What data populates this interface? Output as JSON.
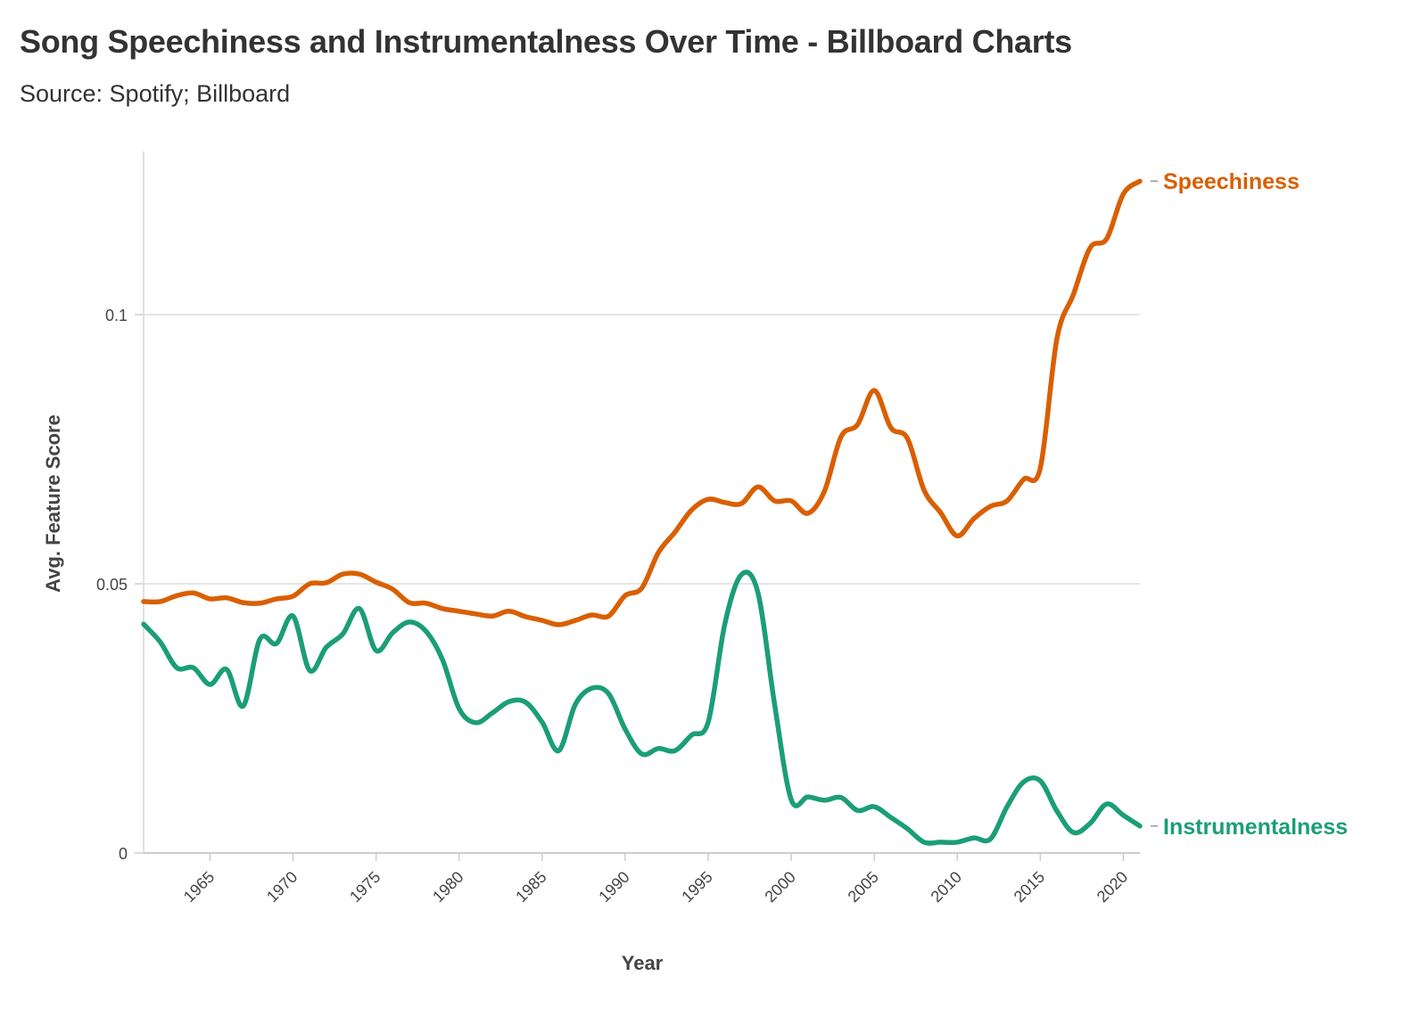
{
  "title": "Song Speechiness and Instrumentalness Over Time - Billboard Charts",
  "subtitle": "Source: Spotify; Billboard",
  "chart_data": {
    "type": "line",
    "title": "Song Speechiness and Instrumentalness Over Time - Billboard Charts",
    "subtitle": "Source: Spotify; Billboard",
    "xlabel": "Year",
    "ylabel": "Avg. Feature Score",
    "xlim": [
      1961,
      2021
    ],
    "ylim": [
      0,
      0.13
    ],
    "x_ticks": [
      1965,
      1970,
      1975,
      1980,
      1985,
      1990,
      1995,
      2000,
      2005,
      2010,
      2015,
      2020
    ],
    "y_ticks": [
      0,
      0.05,
      0.1
    ],
    "y_tick_labels": [
      "0",
      "0.05",
      "0.1"
    ],
    "grid": "horizontal",
    "legend": "direct labels at line ends",
    "x": [
      1961,
      1962,
      1963,
      1964,
      1965,
      1966,
      1967,
      1968,
      1969,
      1970,
      1971,
      1972,
      1973,
      1974,
      1975,
      1976,
      1977,
      1978,
      1979,
      1980,
      1981,
      1982,
      1983,
      1984,
      1985,
      1986,
      1987,
      1988,
      1989,
      1990,
      1991,
      1992,
      1993,
      1994,
      1995,
      1996,
      1997,
      1998,
      1999,
      2000,
      2001,
      2002,
      2003,
      2004,
      2005,
      2006,
      2007,
      2008,
      2009,
      2010,
      2011,
      2012,
      2013,
      2014,
      2015,
      2016,
      2017,
      2018,
      2019,
      2020,
      2021
    ],
    "series": [
      {
        "name": "Speechiness",
        "color": "#d95f02",
        "values": [
          0.0467,
          0.0467,
          0.0478,
          0.0483,
          0.0472,
          0.0474,
          0.0465,
          0.0464,
          0.0472,
          0.0477,
          0.05,
          0.0502,
          0.0518,
          0.0518,
          0.0503,
          0.049,
          0.0465,
          0.0464,
          0.0454,
          0.0449,
          0.0444,
          0.044,
          0.0449,
          0.0439,
          0.0432,
          0.0424,
          0.0432,
          0.0442,
          0.044,
          0.0478,
          0.0492,
          0.0558,
          0.0596,
          0.0637,
          0.0657,
          0.0651,
          0.0649,
          0.068,
          0.0654,
          0.0654,
          0.0631,
          0.0672,
          0.0773,
          0.0796,
          0.0859,
          0.079,
          0.077,
          0.0674,
          0.0632,
          0.0589,
          0.0621,
          0.0644,
          0.0654,
          0.0694,
          0.0715,
          0.0955,
          0.1038,
          0.1124,
          0.1141,
          0.1224,
          0.1248
        ]
      },
      {
        "name": "Instrumentalness",
        "color": "#1b9e77",
        "values": [
          0.0425,
          0.0392,
          0.0344,
          0.0344,
          0.0313,
          0.0341,
          0.0273,
          0.0397,
          0.0389,
          0.044,
          0.0339,
          0.0382,
          0.0407,
          0.0454,
          0.0376,
          0.0409,
          0.0429,
          0.0412,
          0.0359,
          0.0268,
          0.0242,
          0.026,
          0.0281,
          0.028,
          0.0243,
          0.019,
          0.0276,
          0.0306,
          0.0296,
          0.023,
          0.0184,
          0.0194,
          0.019,
          0.0219,
          0.0243,
          0.0425,
          0.0517,
          0.0483,
          0.0276,
          0.0099,
          0.0104,
          0.0098,
          0.0103,
          0.0079,
          0.0086,
          0.0066,
          0.0045,
          0.002,
          0.002,
          0.002,
          0.0028,
          0.0026,
          0.0086,
          0.0132,
          0.0134,
          0.0078,
          0.0038,
          0.0055,
          0.0091,
          0.007,
          0.005
        ]
      }
    ]
  }
}
